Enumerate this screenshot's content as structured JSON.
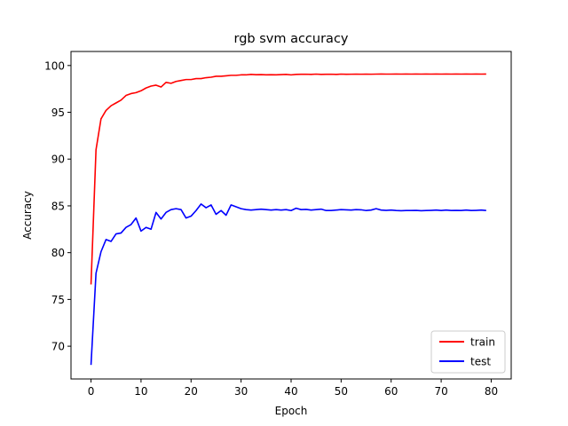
{
  "chart_data": {
    "type": "line",
    "title": "rgb svm accuracy",
    "xlabel": "Epoch",
    "ylabel": "Accuracy",
    "xlim": [
      -4,
      84
    ],
    "ylim": [
      66.5,
      101.5
    ],
    "xticks": [
      0,
      10,
      20,
      30,
      40,
      50,
      60,
      70,
      80
    ],
    "yticks": [
      70,
      75,
      80,
      85,
      90,
      95,
      100
    ],
    "grid": false,
    "legend_position": "bottom-right",
    "series": [
      {
        "name": "train",
        "color": "#ff0000",
        "x": [
          0,
          1,
          2,
          3,
          4,
          5,
          6,
          7,
          8,
          9,
          10,
          11,
          12,
          13,
          14,
          15,
          16,
          17,
          18,
          19,
          20,
          21,
          22,
          23,
          24,
          25,
          26,
          27,
          28,
          29,
          30,
          31,
          32,
          33,
          34,
          35,
          36,
          37,
          38,
          39,
          40,
          41,
          42,
          43,
          44,
          45,
          46,
          47,
          48,
          49,
          50,
          51,
          52,
          53,
          54,
          55,
          56,
          57,
          58,
          59,
          60,
          61,
          62,
          63,
          64,
          65,
          66,
          67,
          68,
          69,
          70,
          71,
          72,
          73,
          74,
          75,
          76,
          77,
          78,
          79
        ],
        "values": [
          76.6,
          91.0,
          94.3,
          95.2,
          95.7,
          96.0,
          96.3,
          96.8,
          97.0,
          97.1,
          97.3,
          97.6,
          97.8,
          97.9,
          97.7,
          98.2,
          98.1,
          98.3,
          98.4,
          98.5,
          98.5,
          98.6,
          98.6,
          98.7,
          98.75,
          98.85,
          98.85,
          98.9,
          98.95,
          98.95,
          99.0,
          99.0,
          99.05,
          99.02,
          99.03,
          99.0,
          99.02,
          99.0,
          99.03,
          99.05,
          99.0,
          99.05,
          99.06,
          99.07,
          99.05,
          99.08,
          99.05,
          99.06,
          99.07,
          99.05,
          99.08,
          99.06,
          99.07,
          99.08,
          99.07,
          99.08,
          99.07,
          99.08,
          99.09,
          99.08,
          99.08,
          99.09,
          99.08,
          99.09,
          99.08,
          99.09,
          99.08,
          99.09,
          99.08,
          99.09,
          99.08,
          99.09,
          99.08,
          99.09,
          99.08,
          99.09,
          99.08,
          99.09,
          99.08,
          99.09
        ]
      },
      {
        "name": "test",
        "color": "#0000ff",
        "x": [
          0,
          1,
          2,
          3,
          4,
          5,
          6,
          7,
          8,
          9,
          10,
          11,
          12,
          13,
          14,
          15,
          16,
          17,
          18,
          19,
          20,
          21,
          22,
          23,
          24,
          25,
          26,
          27,
          28,
          29,
          30,
          31,
          32,
          33,
          34,
          35,
          36,
          37,
          38,
          39,
          40,
          41,
          42,
          43,
          44,
          45,
          46,
          47,
          48,
          49,
          50,
          51,
          52,
          53,
          54,
          55,
          56,
          57,
          58,
          59,
          60,
          61,
          62,
          63,
          64,
          65,
          66,
          67,
          68,
          69,
          70,
          71,
          72,
          73,
          74,
          75,
          76,
          77,
          78,
          79
        ],
        "values": [
          68.0,
          77.8,
          80.1,
          81.4,
          81.2,
          82.0,
          82.1,
          82.7,
          83.0,
          83.7,
          82.3,
          82.7,
          82.5,
          84.3,
          83.6,
          84.3,
          84.6,
          84.7,
          84.6,
          83.7,
          83.9,
          84.5,
          85.2,
          84.8,
          85.1,
          84.1,
          84.5,
          84.0,
          85.1,
          84.9,
          84.7,
          84.6,
          84.55,
          84.6,
          84.65,
          84.6,
          84.55,
          84.6,
          84.55,
          84.6,
          84.5,
          84.75,
          84.6,
          84.62,
          84.55,
          84.6,
          84.65,
          84.5,
          84.5,
          84.55,
          84.6,
          84.58,
          84.55,
          84.6,
          84.58,
          84.5,
          84.55,
          84.7,
          84.55,
          84.52,
          84.55,
          84.5,
          84.48,
          84.5,
          84.5,
          84.52,
          84.48,
          84.5,
          84.52,
          84.55,
          84.5,
          84.55,
          84.5,
          84.52,
          84.5,
          84.55,
          84.5,
          84.52,
          84.55,
          84.5
        ]
      }
    ]
  }
}
